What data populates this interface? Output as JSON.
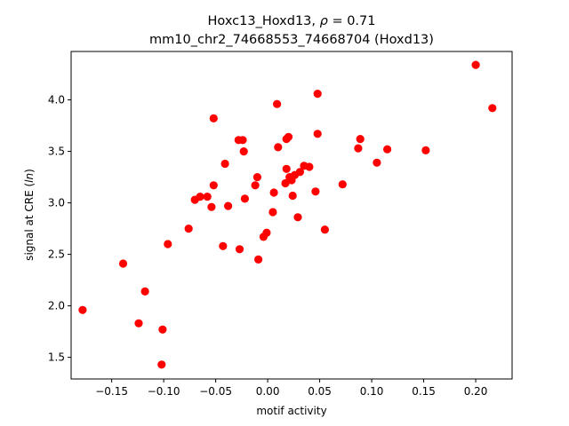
{
  "chart_data": {
    "type": "scatter",
    "title_main": "Hoxc13_Hoxd13, ",
    "title_rho": "ρ",
    "title_rho_value": " = 0.71",
    "subtitle": "mm10_chr2_74668553_74668704 (Hoxd13)",
    "xlabel": "motif activity",
    "ylabel_prefix": "signal at CRE (",
    "ylabel_italic": "ln",
    "ylabel_suffix": ")",
    "xlim": [
      -0.189,
      0.235
    ],
    "ylim": [
      1.29,
      4.47
    ],
    "xticks": [
      -0.15,
      -0.1,
      -0.05,
      0.0,
      0.05,
      0.1,
      0.15,
      0.2
    ],
    "xtick_labels": [
      "−0.15",
      "−0.10",
      "−0.05",
      "0.00",
      "0.05",
      "0.10",
      "0.15",
      "0.20"
    ],
    "yticks": [
      1.5,
      2.0,
      2.5,
      3.0,
      3.5,
      4.0
    ],
    "ytick_labels": [
      "1.5",
      "2.0",
      "2.5",
      "3.0",
      "3.5",
      "4.0"
    ],
    "marker_color": "#ff0000",
    "points": [
      {
        "x": -0.178,
        "y": 1.96
      },
      {
        "x": -0.139,
        "y": 2.41
      },
      {
        "x": -0.124,
        "y": 1.83
      },
      {
        "x": -0.118,
        "y": 2.14
      },
      {
        "x": -0.101,
        "y": 1.77
      },
      {
        "x": -0.102,
        "y": 1.43
      },
      {
        "x": -0.096,
        "y": 2.6
      },
      {
        "x": -0.076,
        "y": 2.75
      },
      {
        "x": -0.07,
        "y": 3.03
      },
      {
        "x": -0.065,
        "y": 3.06
      },
      {
        "x": -0.058,
        "y": 3.06
      },
      {
        "x": -0.054,
        "y": 2.96
      },
      {
        "x": -0.052,
        "y": 3.82
      },
      {
        "x": -0.052,
        "y": 3.17
      },
      {
        "x": -0.043,
        "y": 2.58
      },
      {
        "x": -0.041,
        "y": 3.38
      },
      {
        "x": -0.038,
        "y": 2.97
      },
      {
        "x": -0.028,
        "y": 3.61
      },
      {
        "x": -0.027,
        "y": 2.55
      },
      {
        "x": -0.024,
        "y": 3.61
      },
      {
        "x": -0.023,
        "y": 3.5
      },
      {
        "x": -0.022,
        "y": 3.04
      },
      {
        "x": -0.012,
        "y": 3.17
      },
      {
        "x": -0.01,
        "y": 3.25
      },
      {
        "x": -0.009,
        "y": 2.45
      },
      {
        "x": -0.004,
        "y": 2.67
      },
      {
        "x": -0.001,
        "y": 2.71
      },
      {
        "x": 0.005,
        "y": 2.91
      },
      {
        "x": 0.006,
        "y": 3.1
      },
      {
        "x": 0.009,
        "y": 3.96
      },
      {
        "x": 0.01,
        "y": 3.54
      },
      {
        "x": 0.017,
        "y": 3.19
      },
      {
        "x": 0.018,
        "y": 3.33
      },
      {
        "x": 0.018,
        "y": 3.62
      },
      {
        "x": 0.02,
        "y": 3.64
      },
      {
        "x": 0.021,
        "y": 3.25
      },
      {
        "x": 0.023,
        "y": 3.22
      },
      {
        "x": 0.024,
        "y": 3.07
      },
      {
        "x": 0.026,
        "y": 3.27
      },
      {
        "x": 0.029,
        "y": 2.86
      },
      {
        "x": 0.031,
        "y": 3.3
      },
      {
        "x": 0.035,
        "y": 3.36
      },
      {
        "x": 0.04,
        "y": 3.35
      },
      {
        "x": 0.046,
        "y": 3.11
      },
      {
        "x": 0.048,
        "y": 4.06
      },
      {
        "x": 0.048,
        "y": 3.67
      },
      {
        "x": 0.055,
        "y": 2.74
      },
      {
        "x": 0.072,
        "y": 3.18
      },
      {
        "x": 0.087,
        "y": 3.53
      },
      {
        "x": 0.089,
        "y": 3.62
      },
      {
        "x": 0.105,
        "y": 3.39
      },
      {
        "x": 0.115,
        "y": 3.52
      },
      {
        "x": 0.152,
        "y": 3.51
      },
      {
        "x": 0.2,
        "y": 4.34
      },
      {
        "x": 0.216,
        "y": 3.92
      }
    ]
  }
}
